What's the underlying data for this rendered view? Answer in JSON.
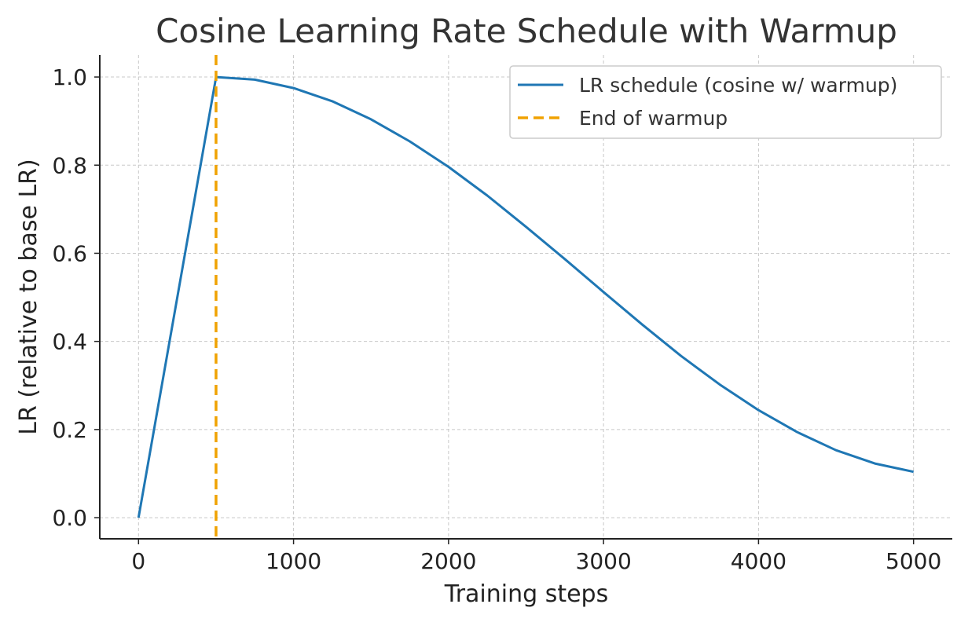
{
  "chart_data": {
    "type": "line",
    "title": "Cosine Learning Rate Schedule with Warmup",
    "xlabel": "Training steps",
    "ylabel": "LR (relative to base LR)",
    "xlim": [
      -250,
      5250
    ],
    "ylim": [
      -0.048,
      1.05
    ],
    "xticks": [
      0,
      1000,
      2000,
      3000,
      4000,
      5000
    ],
    "xtick_labels": [
      "0",
      "1000",
      "2000",
      "3000",
      "4000",
      "5000"
    ],
    "yticks": [
      0.0,
      0.2,
      0.4,
      0.6,
      0.8,
      1.0
    ],
    "ytick_labels": [
      "0.0",
      "0.2",
      "0.4",
      "0.6",
      "0.8",
      "1.0"
    ],
    "grid": true,
    "legend_position": "top-right",
    "series": [
      {
        "name": "LR schedule (cosine w/ warmup)",
        "style": "solid",
        "color": "#1f77b4",
        "x": [
          0,
          500,
          750,
          1000,
          1250,
          1500,
          1750,
          2000,
          2250,
          2500,
          2750,
          3000,
          3250,
          3500,
          3750,
          4000,
          4250,
          4500,
          4750,
          5000
        ],
        "y": [
          0.0,
          1.0,
          0.994,
          0.975,
          0.945,
          0.904,
          0.854,
          0.796,
          0.731,
          0.66,
          0.587,
          0.512,
          0.438,
          0.367,
          0.302,
          0.244,
          0.194,
          0.153,
          0.123,
          0.104
        ]
      },
      {
        "name": "End of warmup",
        "style": "dashed",
        "color": "#f0a202",
        "x_value": 500
      }
    ]
  }
}
